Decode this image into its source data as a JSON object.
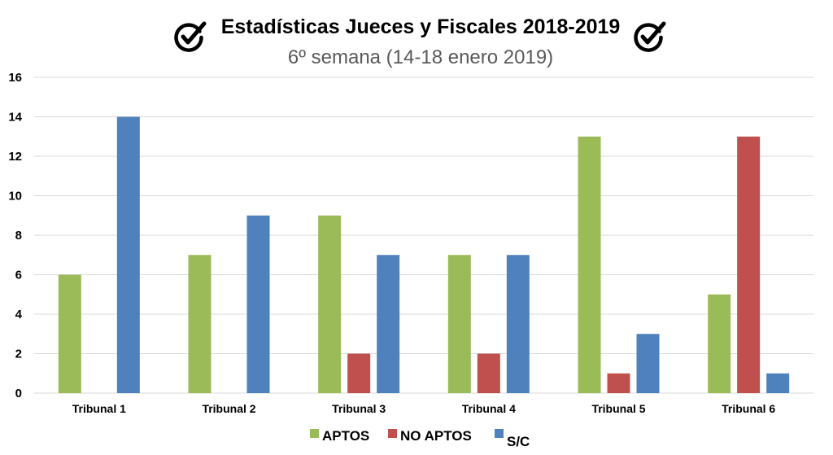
{
  "chart_data": {
    "type": "bar",
    "title": "Estadísticas Jueces y Fiscales 2018-2019",
    "subtitle": "6º semana (14-18 enero 2019)",
    "categories": [
      "Tribunal 1",
      "Tribunal 2",
      "Tribunal 3",
      "Tribunal 4",
      "Tribunal 5",
      "Tribunal 6"
    ],
    "series": [
      {
        "name": "APTOS",
        "color": "#9bbb59",
        "values": [
          6,
          7,
          9,
          7,
          13,
          5
        ]
      },
      {
        "name": "NO APTOS",
        "color": "#c0504d",
        "values": [
          0,
          0,
          2,
          2,
          1,
          13
        ]
      },
      {
        "name": "S/C",
        "color": "#4f81bd",
        "values": [
          14,
          9,
          7,
          7,
          3,
          1
        ]
      }
    ],
    "yticks": [
      "0",
      "2",
      "4",
      "6",
      "8",
      "10",
      "12",
      "14",
      "16"
    ],
    "ylim": [
      0,
      16
    ],
    "grid": true,
    "legend_position": "bottom",
    "title_icon": "check-circle-icon"
  }
}
